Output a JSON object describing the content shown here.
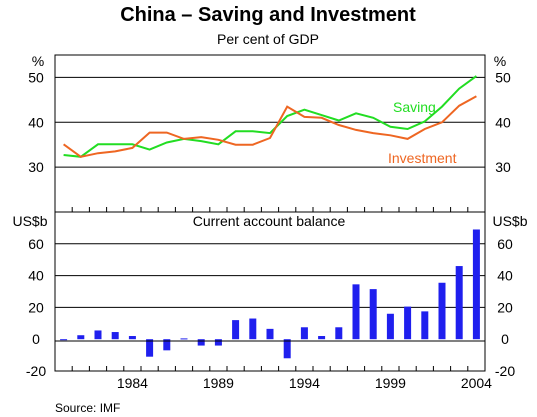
{
  "chart_data": [
    {
      "type": "line",
      "title": "China – Saving and Investment",
      "subtitle": "Per cent of GDP",
      "ylabel": "%",
      "ylim": [
        20,
        55
      ],
      "yticks": [
        30,
        40,
        50
      ],
      "grid": true,
      "x": [
        1980,
        1981,
        1982,
        1983,
        1984,
        1985,
        1986,
        1987,
        1988,
        1989,
        1990,
        1991,
        1992,
        1993,
        1994,
        1995,
        1996,
        1997,
        1998,
        1999,
        2000,
        2001,
        2002,
        2003,
        2004
      ],
      "series": [
        {
          "name": "Saving",
          "color": "#22dd22",
          "values": [
            32.7,
            32.3,
            35.1,
            35.1,
            35.1,
            33.9,
            35.5,
            36.3,
            35.8,
            35.1,
            38.0,
            38.0,
            37.6,
            41.4,
            42.8,
            41.6,
            40.4,
            42.0,
            41.0,
            39.0,
            38.5,
            40.2,
            43.5,
            47.5,
            50.3
          ]
        },
        {
          "name": "Investment",
          "color": "#ee6622",
          "values": [
            35.1,
            32.3,
            33.1,
            33.5,
            34.3,
            37.7,
            37.7,
            36.3,
            36.7,
            36.1,
            35.0,
            35.0,
            36.5,
            43.5,
            41.2,
            41.0,
            39.4,
            38.3,
            37.6,
            37.1,
            36.3,
            38.5,
            40.0,
            43.7,
            45.8
          ]
        }
      ]
    },
    {
      "type": "bar",
      "title": "Current account balance",
      "ylabel": "US$b",
      "ylim": [
        -20,
        80
      ],
      "yticks": [
        -20,
        0,
        20,
        40,
        60
      ],
      "color": "#1f1fee",
      "x": [
        1980,
        1981,
        1982,
        1983,
        1984,
        1985,
        1986,
        1987,
        1988,
        1989,
        1990,
        1991,
        1992,
        1993,
        1994,
        1995,
        1996,
        1997,
        1998,
        1999,
        2000,
        2001,
        2002,
        2003,
        2004
      ],
      "values": [
        -0.5,
        2.5,
        5.5,
        4.5,
        2.0,
        -11.0,
        -7.0,
        0.5,
        -4.0,
        -4.0,
        12.0,
        13.0,
        6.5,
        -12.0,
        7.5,
        2.0,
        7.5,
        34.5,
        31.5,
        16.0,
        20.5,
        17.5,
        35.5,
        46.0,
        69.0
      ],
      "xticks": [
        1984,
        1989,
        1994,
        1999,
        2004
      ]
    }
  ],
  "labels": {
    "title": "China – Saving and Investment",
    "subtitle": "Per cent of GDP",
    "panel2_title": "Current account balance",
    "y1_unit": "%",
    "y2_unit": "US$b",
    "saving": "Saving",
    "investment": "Investment",
    "source": "Source: IMF"
  }
}
